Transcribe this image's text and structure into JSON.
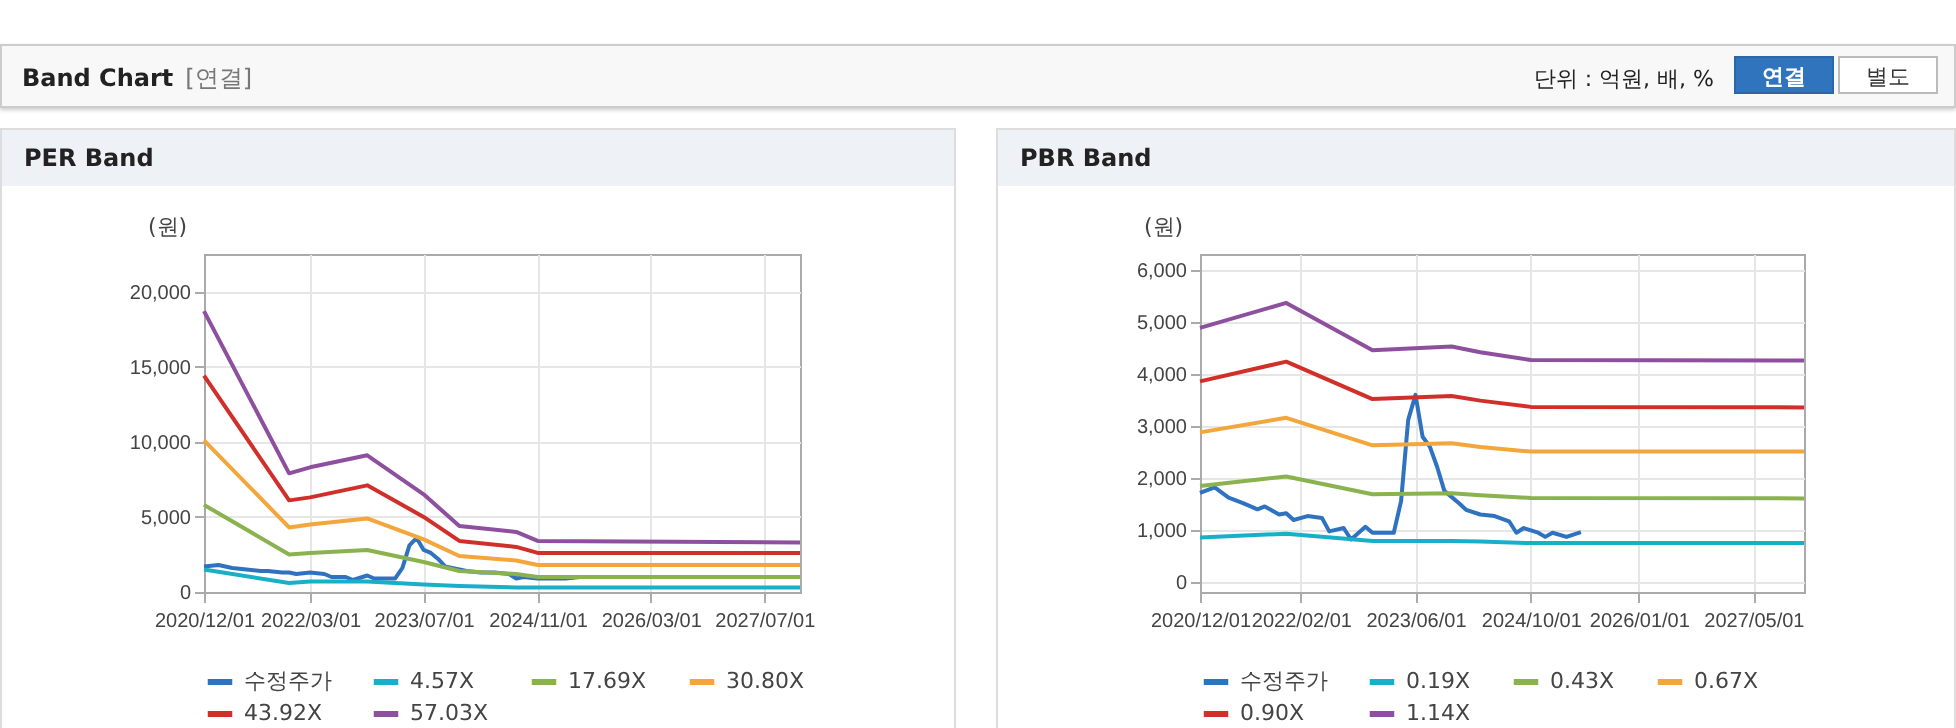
{
  "chart_data": [
    {
      "type": "other",
      "title": "Band Chart",
      "subtitle": "[연결]",
      "annotations": [
        "단위 : 억원, 배, %",
        "연결",
        "별도"
      ]
    },
    {
      "type": "line",
      "title": "PER Band",
      "ylabel": "(원)",
      "xlim": [
        "2020-12-01",
        "2027-12-01"
      ],
      "ylim": [
        0,
        22500
      ],
      "xticks": [
        {
          "value": "2020-12-01",
          "label": "2020/12/01"
        },
        {
          "value": "2022-03-01",
          "label": "2022/03/01"
        },
        {
          "value": "2023-07-01",
          "label": "2023/07/01"
        },
        {
          "value": "2024-11-01",
          "label": "2024/11/01"
        },
        {
          "value": "2026-03-01",
          "label": "2026/03/01"
        },
        {
          "value": "2027-07-01",
          "label": "2027/07/01"
        }
      ],
      "yticks": [
        0,
        {
          "value": 5000,
          "label": "5,000"
        },
        {
          "value": 10000,
          "label": "10,000"
        },
        {
          "value": 15000,
          "label": "15,000"
        },
        {
          "value": 20000,
          "label": "20,000"
        }
      ],
      "grid": true,
      "legend": "bottom",
      "series": [
        {
          "name": "수정주가",
          "color": "#2f72c0",
          "x": [
            "2020-12",
            "2021-02",
            "2021-04",
            "2021-06",
            "2021-08",
            "2021-09",
            "2021-11",
            "2021-12",
            "2022-01",
            "2022-03",
            "2022-05",
            "2022-06",
            "2022-08",
            "2022-09",
            "2022-11",
            "2022-12",
            "2023-01",
            "2023-03",
            "2023-04",
            "2023-05",
            "2023-06",
            "2023-07",
            "2023-08",
            "2023-09",
            "2023-10",
            "2023-12",
            "2024-01",
            "2024-03",
            "2024-05",
            "2024-07",
            "2024-08",
            "2024-09",
            "2024-11",
            "2024-12",
            "2025-01",
            "2025-03",
            "2025-05"
          ],
          "values": [
            1700,
            1800,
            1600,
            1500,
            1400,
            1400,
            1300,
            1300,
            1200,
            1300,
            1200,
            1000,
            1000,
            800,
            1100,
            900,
            900,
            900,
            1600,
            3100,
            3600,
            2800,
            2600,
            2200,
            1700,
            1500,
            1400,
            1300,
            1300,
            1200,
            900,
            1000,
            900,
            900,
            900,
            900,
            1000
          ]
        },
        {
          "name": "4.57X",
          "color": "#17b0c8",
          "x": [
            "2020-12",
            "2021-12",
            "2022-03",
            "2022-11",
            "2023-07",
            "2023-12",
            "2024-08",
            "2024-11",
            "2027-12"
          ],
          "values": [
            1500,
            600,
            700,
            700,
            500,
            400,
            300,
            300,
            300
          ]
        },
        {
          "name": "17.69X",
          "color": "#8ab24f",
          "x": [
            "2020-12",
            "2021-12",
            "2022-03",
            "2022-11",
            "2023-07",
            "2023-12",
            "2024-08",
            "2024-11",
            "2027-12"
          ],
          "values": [
            5800,
            2500,
            2600,
            2800,
            2000,
            1400,
            1200,
            1000,
            1000
          ]
        },
        {
          "name": "30.80X",
          "color": "#f3a63b",
          "x": [
            "2020-12",
            "2021-12",
            "2022-03",
            "2022-11",
            "2023-07",
            "2023-12",
            "2024-08",
            "2024-11",
            "2027-12"
          ],
          "values": [
            10100,
            4300,
            4500,
            4900,
            3500,
            2400,
            2100,
            1800,
            1800
          ]
        },
        {
          "name": "43.92X",
          "color": "#d1302a",
          "x": [
            "2020-12",
            "2021-12",
            "2022-03",
            "2022-11",
            "2023-07",
            "2023-12",
            "2024-08",
            "2024-11",
            "2027-12"
          ],
          "values": [
            14400,
            6100,
            6300,
            7100,
            5000,
            3400,
            3000,
            2600,
            2600
          ]
        },
        {
          "name": "57.03X",
          "color": "#8f4f9f",
          "x": [
            "2020-12",
            "2021-12",
            "2022-03",
            "2022-11",
            "2023-07",
            "2023-12",
            "2024-08",
            "2024-11",
            "2027-12"
          ],
          "values": [
            18700,
            7900,
            8300,
            9100,
            6500,
            4400,
            4000,
            3400,
            3300
          ]
        }
      ]
    },
    {
      "type": "line",
      "title": "PBR Band",
      "ylabel": "(원)",
      "xlim": [
        "2020-12-01",
        "2027-12-01"
      ],
      "ylim": [
        -200,
        6300
      ],
      "xticks": [
        {
          "value": "2020-12-01",
          "label": "2020/12/01"
        },
        {
          "value": "2022-02-01",
          "label": "2022/02/01"
        },
        {
          "value": "2023-06-01",
          "label": "2023/06/01"
        },
        {
          "value": "2024-10-01",
          "label": "2024/10/01"
        },
        {
          "value": "2026-01-01",
          "label": "2026/01/01"
        },
        {
          "value": "2027-05-01",
          "label": "2027/05/01"
        }
      ],
      "yticks": [
        0,
        {
          "value": 1000,
          "label": "1,000"
        },
        {
          "value": 2000,
          "label": "2,000"
        },
        {
          "value": 3000,
          "label": "3,000"
        },
        {
          "value": 4000,
          "label": "4,000"
        },
        {
          "value": 5000,
          "label": "5,000"
        },
        {
          "value": 6000,
          "label": "6,000"
        }
      ],
      "grid": true,
      "legend": "bottom",
      "series": [
        {
          "name": "수정주가",
          "color": "#2f72c0",
          "x": [
            "2020-12",
            "2021-02",
            "2021-04",
            "2021-06",
            "2021-08",
            "2021-09",
            "2021-11",
            "2021-12",
            "2022-01",
            "2022-03",
            "2022-05",
            "2022-06",
            "2022-08",
            "2022-09",
            "2022-11",
            "2022-12",
            "2023-01",
            "2023-03",
            "2023-04",
            "2023-05",
            "2023-06",
            "2023-07",
            "2023-08",
            "2023-09",
            "2023-10",
            "2023-12",
            "2024-01",
            "2024-03",
            "2024-05",
            "2024-07",
            "2024-08",
            "2024-09",
            "2024-11",
            "2024-12",
            "2025-01",
            "2025-03",
            "2025-05"
          ],
          "values": [
            1705,
            1810,
            1615,
            1510,
            1390,
            1445,
            1290,
            1315,
            1185,
            1260,
            1225,
            965,
            1030,
            810,
            1055,
            940,
            940,
            940,
            1550,
            3110,
            3590,
            2785,
            2590,
            2200,
            1745,
            1510,
            1380,
            1290,
            1260,
            1160,
            940,
            1030,
            940,
            860,
            940,
            860,
            950
          ]
        },
        {
          "name": "0.19X",
          "color": "#17b0c8",
          "x": [
            "2020-12",
            "2021-12",
            "2022-12",
            "2023-11",
            "2024-03",
            "2024-10",
            "2027-12"
          ],
          "values": [
            850,
            920,
            780,
            780,
            770,
            740,
            740
          ]
        },
        {
          "name": "0.43X",
          "color": "#8ab24f",
          "x": [
            "2020-12",
            "2021-12",
            "2022-12",
            "2023-11",
            "2024-03",
            "2024-10",
            "2027-12"
          ],
          "values": [
            1840,
            2020,
            1680,
            1700,
            1660,
            1610,
            1600
          ]
        },
        {
          "name": "0.67X",
          "color": "#f3a63b",
          "x": [
            "2020-12",
            "2021-12",
            "2022-12",
            "2023-11",
            "2024-03",
            "2024-10",
            "2027-12"
          ],
          "values": [
            2870,
            3150,
            2620,
            2660,
            2590,
            2500,
            2500
          ]
        },
        {
          "name": "0.90X",
          "color": "#d1302a",
          "x": [
            "2020-12",
            "2021-12",
            "2022-12",
            "2023-11",
            "2024-03",
            "2024-10",
            "2027-12"
          ],
          "values": [
            3850,
            4230,
            3510,
            3570,
            3480,
            3360,
            3350
          ]
        },
        {
          "name": "1.14X",
          "color": "#8f4f9f",
          "x": [
            "2020-12",
            "2021-12",
            "2022-12",
            "2023-11",
            "2024-03",
            "2024-10",
            "2027-12"
          ],
          "values": [
            4880,
            5360,
            4450,
            4520,
            4410,
            4260,
            4250
          ]
        }
      ]
    }
  ]
}
